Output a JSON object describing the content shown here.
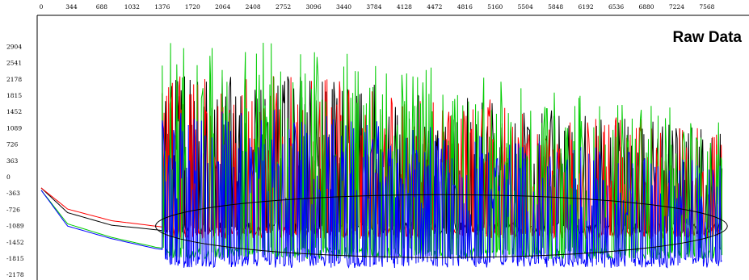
{
  "chart_data": {
    "type": "line",
    "title": "Raw Data",
    "xlabel": "",
    "ylabel": "",
    "x_ticks": [
      0,
      344,
      688,
      1032,
      1376,
      1720,
      2064,
      2408,
      2752,
      3096,
      3440,
      3784,
      4128,
      4472,
      4816,
      5160,
      5504,
      5848,
      6192,
      6536,
      6880,
      7224,
      7568
    ],
    "y_ticks": [
      2904,
      2541,
      2178,
      1815,
      1452,
      1089,
      726,
      363,
      0,
      -363,
      -726,
      -1089,
      -1452,
      -1815,
      -2178
    ],
    "xlim": [
      0,
      7740
    ],
    "ylim": [
      -2200,
      3100
    ],
    "grid": false,
    "legend": "none",
    "series": [
      {
        "color": "#000000",
        "baseline_points": [
          [
            0,
            -250
          ],
          [
            300,
            -800
          ],
          [
            800,
            -1080
          ],
          [
            1300,
            -1180
          ],
          [
            1376,
            -1200
          ]
        ],
        "active_range": [
          1376,
          7740
        ],
        "active_baseline": -1150,
        "active_peak": 2300
      },
      {
        "color": "#ff0000",
        "baseline_points": [
          [
            0,
            -250
          ],
          [
            300,
            -720
          ],
          [
            800,
            -980
          ],
          [
            1300,
            -1100
          ],
          [
            1376,
            -1120
          ]
        ],
        "active_range": [
          1376,
          7740
        ],
        "active_baseline": -1250,
        "active_peak": 2300
      },
      {
        "color": "#00cc00",
        "baseline_points": [
          [
            0,
            -300
          ],
          [
            300,
            -1050
          ],
          [
            800,
            -1350
          ],
          [
            1300,
            -1570
          ],
          [
            1376,
            -1590
          ]
        ],
        "active_range": [
          1376,
          7740
        ],
        "active_baseline": -1700,
        "active_peak": 3000
      },
      {
        "color": "#0000ff",
        "baseline_points": [
          [
            0,
            -300
          ],
          [
            300,
            -1100
          ],
          [
            800,
            -1380
          ],
          [
            1300,
            -1600
          ],
          [
            1376,
            -1620
          ]
        ],
        "active_range": [
          1376,
          7740
        ],
        "active_baseline": -1900,
        "active_peak": 1500
      }
    ],
    "annotations": [
      {
        "type": "ellipse",
        "center": [
          4550,
          -1100
        ],
        "radii": [
          3250,
          700
        ]
      }
    ]
  }
}
